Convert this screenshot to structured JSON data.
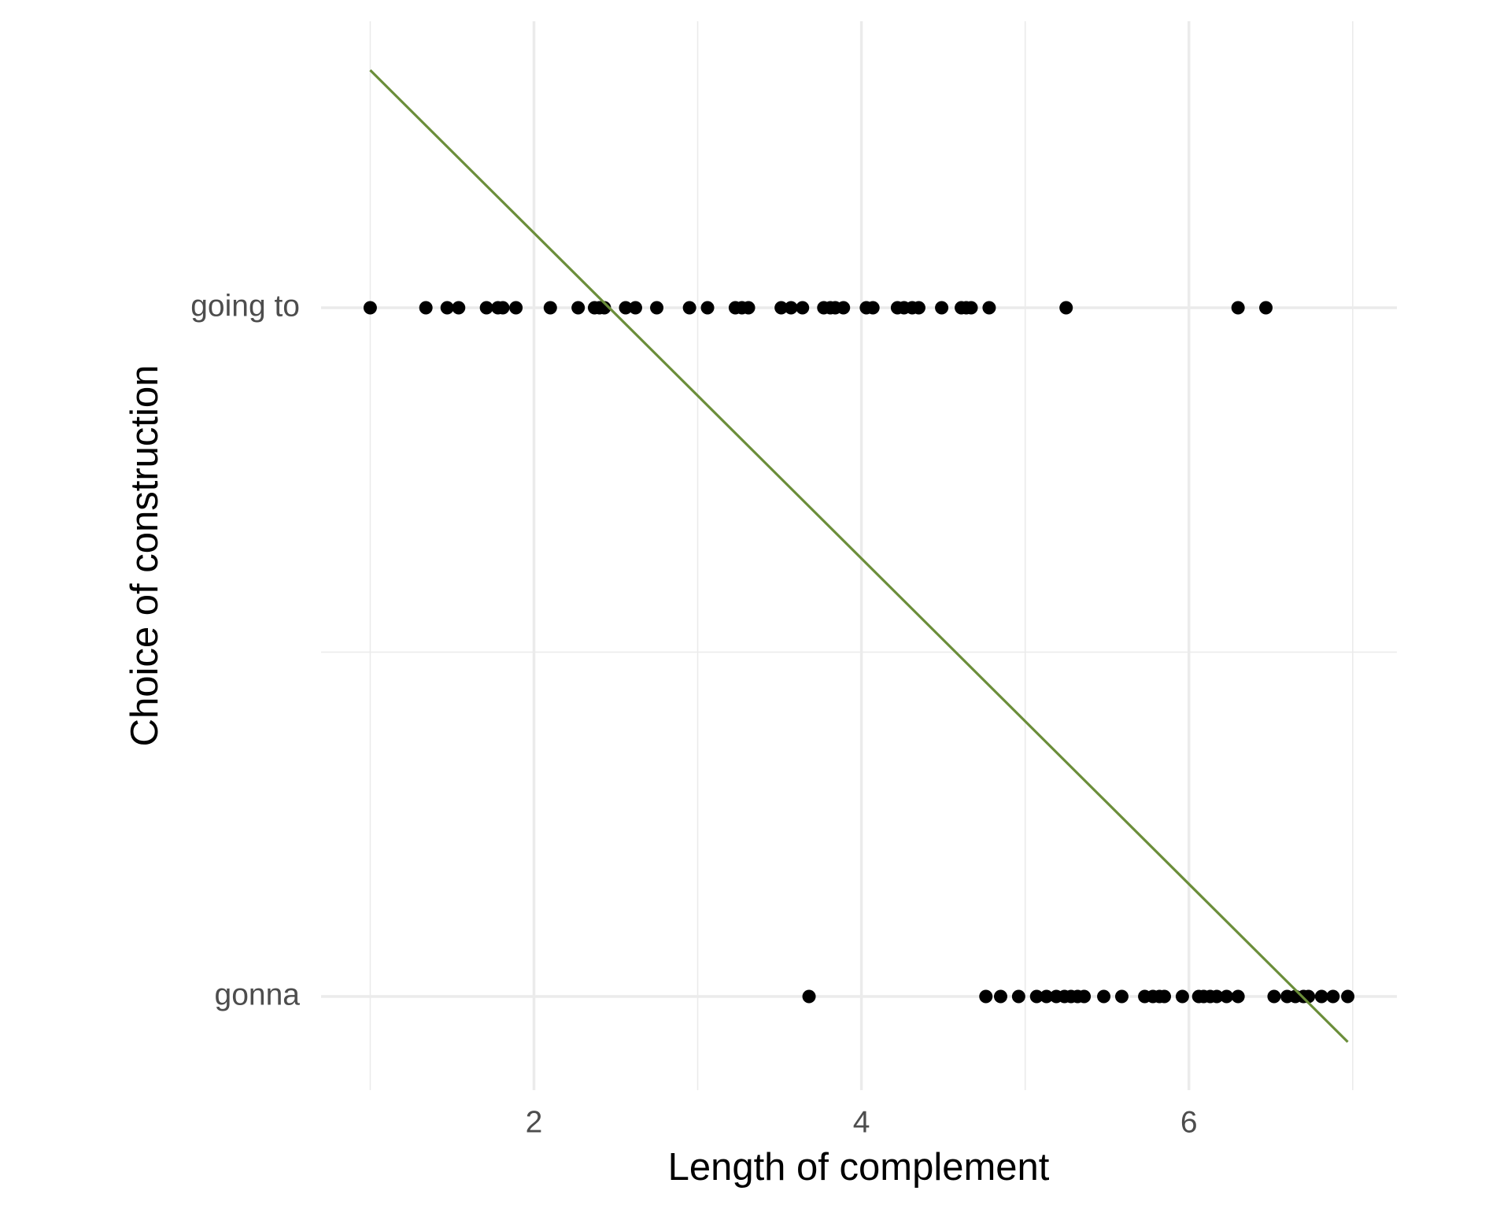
{
  "chart_data": {
    "type": "scatter",
    "xlabel": "Length of complement",
    "ylabel": "Choice of construction",
    "x": [
      1.0,
      1.34,
      1.47,
      1.54,
      1.71,
      1.78,
      1.81,
      1.89,
      2.1,
      2.27,
      2.37,
      2.4,
      2.43,
      2.56,
      2.62,
      2.75,
      2.95,
      3.06,
      3.23,
      3.27,
      3.31,
      3.51,
      3.57,
      3.64,
      3.77,
      3.81,
      3.84,
      3.89,
      4.03,
      4.07,
      4.22,
      4.26,
      4.31,
      4.35,
      4.49,
      4.61,
      4.64,
      4.67,
      4.78,
      5.25,
      6.3,
      6.47,
      3.68,
      4.76,
      4.85,
      4.96,
      5.07,
      5.13,
      5.19,
      5.24,
      5.28,
      5.32,
      5.36,
      5.48,
      5.59,
      5.73,
      5.78,
      5.82,
      5.85,
      5.96,
      6.06,
      6.09,
      6.13,
      6.17,
      6.23,
      6.3,
      6.52,
      6.6,
      6.65,
      6.7,
      6.73,
      6.81,
      6.88,
      6.97
    ],
    "y": [
      2,
      2,
      2,
      2,
      2,
      2,
      2,
      2,
      2,
      2,
      2,
      2,
      2,
      2,
      2,
      2,
      2,
      2,
      2,
      2,
      2,
      2,
      2,
      2,
      2,
      2,
      2,
      2,
      2,
      2,
      2,
      2,
      2,
      2,
      2,
      2,
      2,
      2,
      2,
      2,
      2,
      2,
      1,
      1,
      1,
      1,
      1,
      1,
      1,
      1,
      1,
      1,
      1,
      1,
      1,
      1,
      1,
      1,
      1,
      1,
      1,
      1,
      1,
      1,
      1,
      1,
      1,
      1,
      1,
      1,
      1,
      1,
      1,
      1
    ],
    "color": "#000000",
    "fit": {
      "x": [
        1,
        6.97
      ],
      "y": [
        2.345,
        0.934
      ],
      "color": "#6b8e3a"
    },
    "xlim": [
      0.7,
      7.27
    ],
    "xticks": [
      2,
      4,
      6
    ],
    "xminor": [
      1,
      3,
      5,
      7
    ],
    "ylim": [
      0.864,
      2.416
    ],
    "yticks": [
      {
        "value": 1,
        "label": "gonna"
      },
      {
        "value": 2,
        "label": "going to"
      }
    ],
    "yminor": [
      1.5
    ],
    "grid": true
  }
}
